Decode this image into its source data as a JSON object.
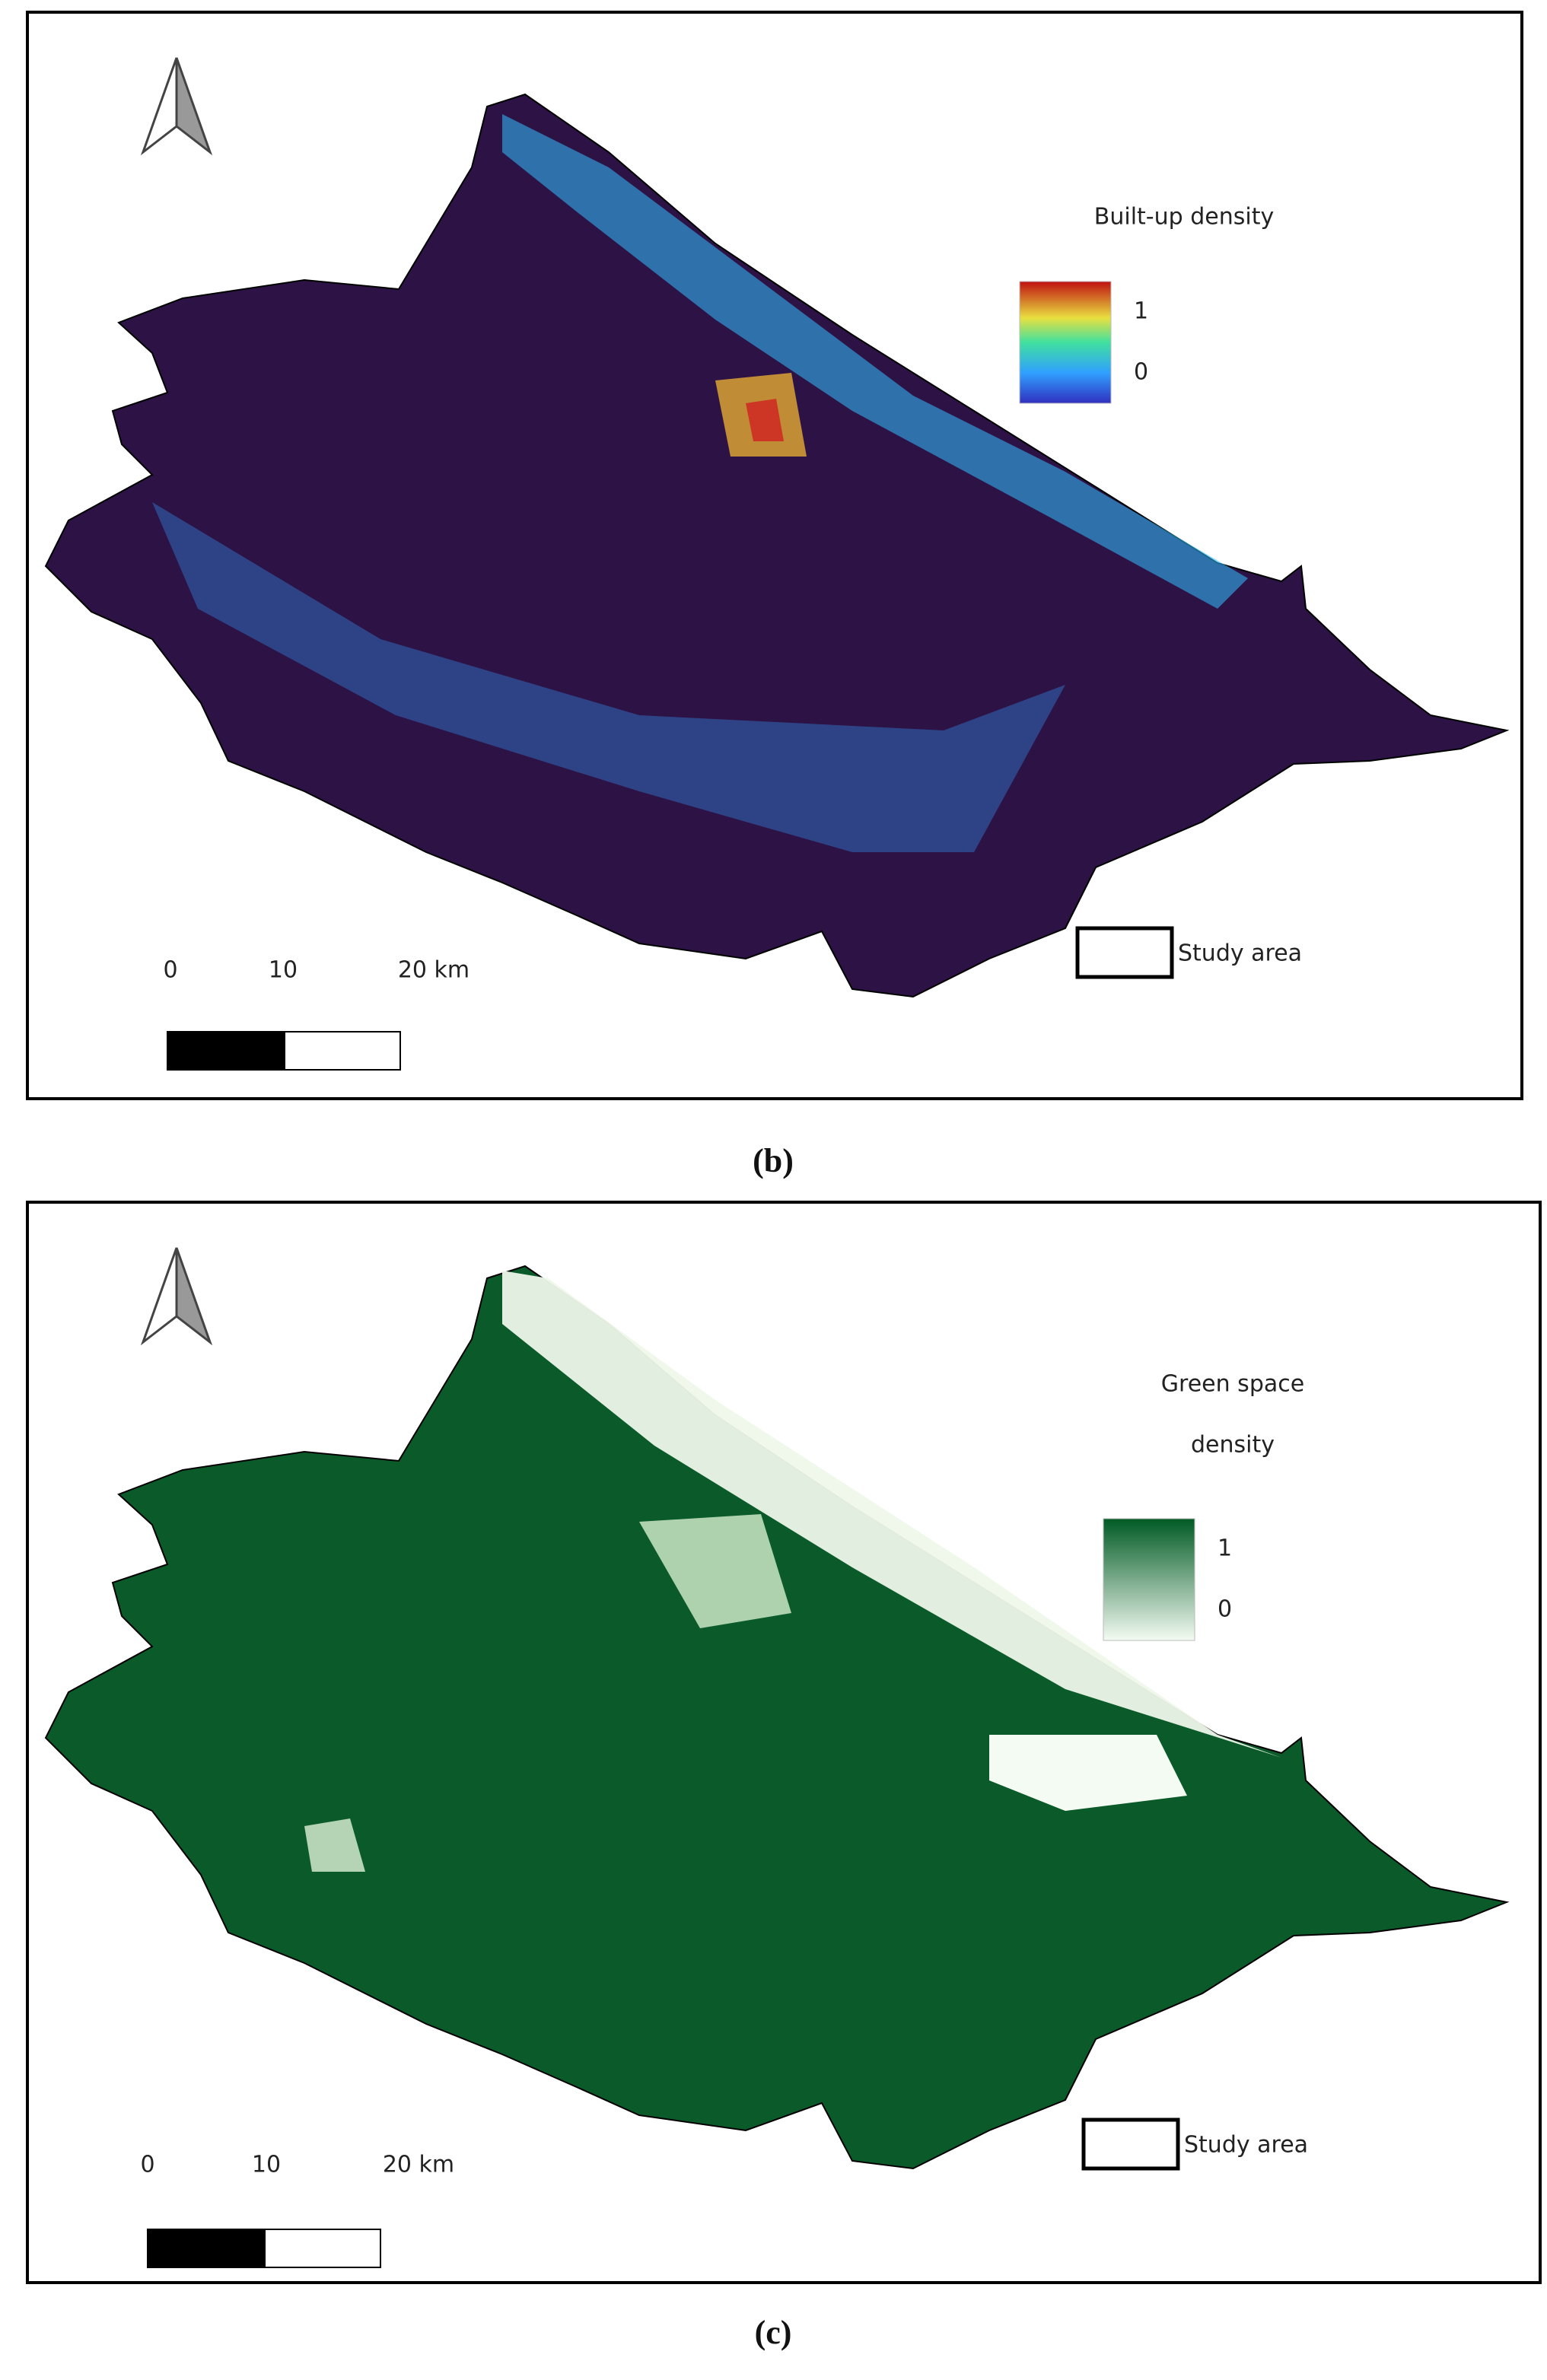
{
  "panels": [
    {
      "caption": "(b)",
      "legend": {
        "title_lines": [
          "Built-up density"
        ],
        "max": "1",
        "min": "0"
      },
      "scale_bar": [
        "0",
        "10",
        "20 km"
      ],
      "study_area": "Study area"
    },
    {
      "caption": "(c)",
      "legend": {
        "title_lines": [
          "Green space",
          "density"
        ],
        "max": "1",
        "min": "0"
      },
      "scale_bar": [
        "0",
        "10",
        "20 km"
      ],
      "study_area": "Study area"
    }
  ]
}
